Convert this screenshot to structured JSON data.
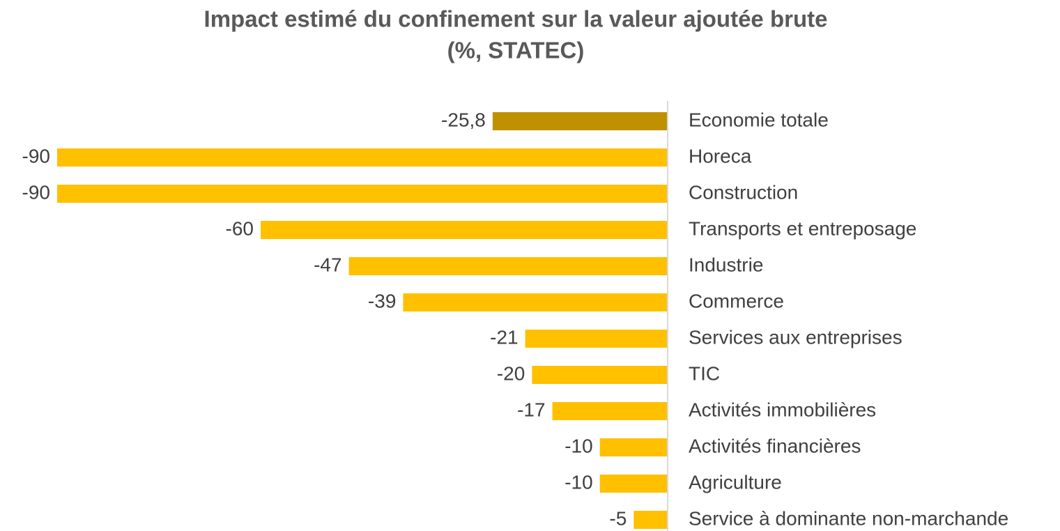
{
  "chart_data": {
    "type": "hbar",
    "title": "Impact estimé du confinement sur la valeur ajoutée brute",
    "subtitle": "(%, STATEC)",
    "categories": [
      "Economie totale",
      "Horeca",
      "Construction",
      "Transports et entreposage",
      "Industrie",
      "Commerce",
      "Services aux entreprises",
      "TIC",
      "Activités immobilières",
      "Activités financières",
      "Agriculture",
      "Service à dominante non-marchande"
    ],
    "values": [
      -25.8,
      -90,
      -90,
      -60,
      -47,
      -39,
      -21,
      -20,
      -17,
      -10,
      -10,
      -5
    ],
    "value_labels": [
      "-25,8",
      "-90",
      "-90",
      "-60",
      "-47",
      "-39",
      "-21",
      "-20",
      "-17",
      "-10",
      "-10",
      "-5"
    ],
    "colors": [
      "#bf9000",
      "#ffc000",
      "#ffc000",
      "#ffc000",
      "#ffc000",
      "#ffc000",
      "#ffc000",
      "#ffc000",
      "#ffc000",
      "#ffc000",
      "#ffc000",
      "#ffc000"
    ],
    "xlim": [
      -90,
      0
    ]
  }
}
